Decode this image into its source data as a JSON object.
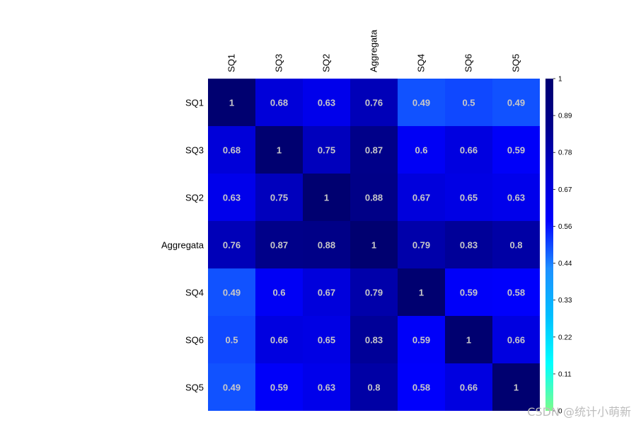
{
  "chart_data": {
    "type": "heatmap",
    "title": "",
    "xlabel": "",
    "ylabel": "",
    "x_categories": [
      "SQ1",
      "SQ3",
      "SQ2",
      "Aggregata",
      "SQ4",
      "SQ6",
      "SQ5"
    ],
    "y_categories": [
      "SQ1",
      "SQ3",
      "SQ2",
      "Aggregata",
      "SQ4",
      "SQ6",
      "SQ5"
    ],
    "values": [
      [
        1,
        0.68,
        0.63,
        0.76,
        0.49,
        0.5,
        0.49
      ],
      [
        0.68,
        1,
        0.75,
        0.87,
        0.6,
        0.66,
        0.59
      ],
      [
        0.63,
        0.75,
        1,
        0.88,
        0.67,
        0.65,
        0.63
      ],
      [
        0.76,
        0.87,
        0.88,
        1,
        0.79,
        0.83,
        0.8
      ],
      [
        0.49,
        0.6,
        0.67,
        0.79,
        1,
        0.59,
        0.58
      ],
      [
        0.5,
        0.66,
        0.65,
        0.83,
        0.59,
        1,
        0.66
      ],
      [
        0.49,
        0.59,
        0.63,
        0.8,
        0.58,
        0.66,
        1
      ]
    ],
    "colorbar": {
      "range": [
        0,
        1
      ],
      "tick_labels": [
        "1",
        "0.89",
        "0.78",
        "0.67",
        "0.56",
        "0.44",
        "0.33",
        "0.22",
        "0.11",
        "0"
      ],
      "color_stops": [
        "#7CFC8A",
        "#00FFFF",
        "#00BFFF",
        "#1E90FF",
        "#0000FF",
        "#0000CD",
        "#00008B",
        "#000070"
      ]
    },
    "annotation_color": "#c8c8c8"
  },
  "watermark": "CSDN @统计小萌新"
}
